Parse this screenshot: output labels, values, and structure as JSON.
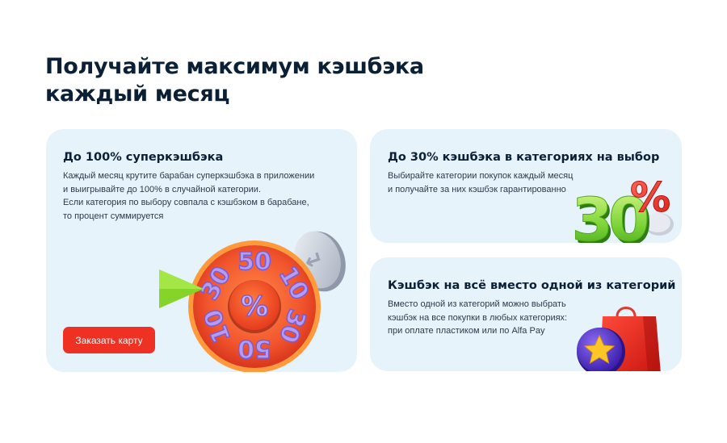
{
  "heading": {
    "line1": "Получайте максимум кэшбэка",
    "line2": "каждый месяц"
  },
  "cards": [
    {
      "title": "До 100% суперкэшбэка",
      "text": [
        "Каждый месяц крутите барабан суперкэшбэка в приложении",
        "и выигрывайте до 100% в случайной категории.",
        "Если категория по выбору совпала с кэшбэком в барабане,",
        "то процент суммируется"
      ],
      "button_label": "Заказать карту",
      "illustration": {
        "icon": "cashback-wheel-icon",
        "center": "%",
        "segments": [
          "50",
          "10",
          "30",
          "50",
          "10",
          "30"
        ],
        "coin": "↵"
      }
    },
    {
      "title": "До 30% кэшбэка в категориях на выбор",
      "text": [
        "Выбирайте категории покупок каждый месяц",
        "и получайте за них кэшбэк гарантированно"
      ],
      "illustration": {
        "icon": "thirty-percent-icon",
        "number": "30",
        "symbol": "%"
      }
    },
    {
      "title": "Кэшбэк на всё вместо одной из категорий",
      "text": [
        "Вместо одной из категорий можно выбрать",
        "кэшбэк на все покупки в любых категориях:",
        "при оплате пластиком или по Alfa Pay"
      ],
      "illustration": {
        "icon": "shopping-bag-star-icon"
      }
    }
  ],
  "colors": {
    "accent": "#ef3124",
    "card_bg": "#e6f3fb",
    "text": "#0b1f35"
  }
}
